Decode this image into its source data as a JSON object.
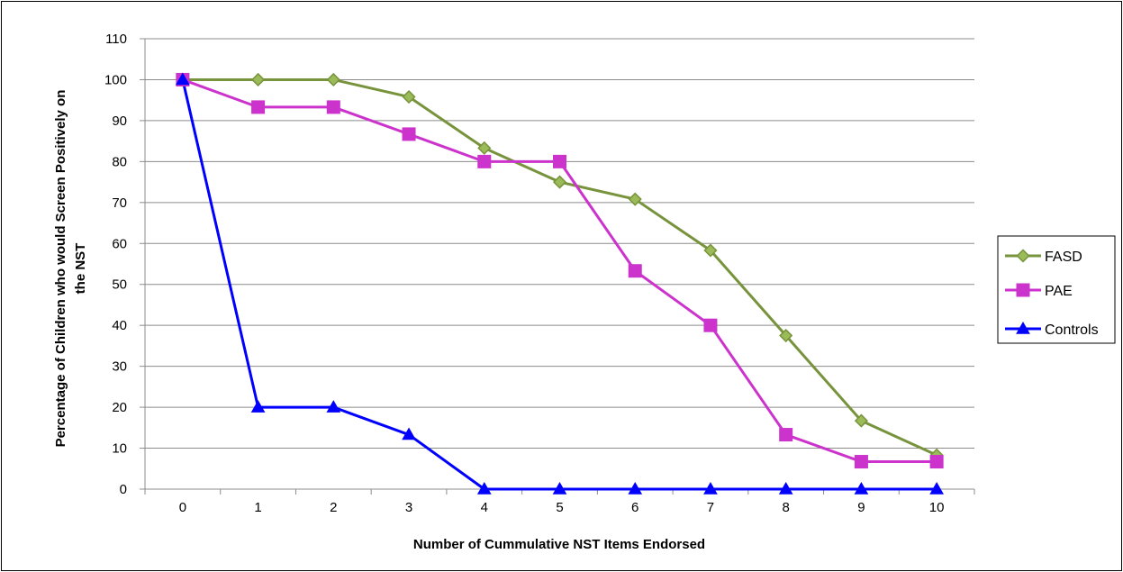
{
  "chart_data": {
    "type": "line",
    "x": [
      0,
      1,
      2,
      3,
      4,
      5,
      6,
      7,
      8,
      9,
      10
    ],
    "series": [
      {
        "name": "FASD",
        "values": [
          100,
          100,
          100,
          95.8,
          83.3,
          75,
          70.8,
          58.3,
          37.5,
          16.7,
          8.3
        ],
        "color": "#77933C",
        "marker": "diamond"
      },
      {
        "name": "PAE",
        "values": [
          100,
          93.3,
          93.3,
          86.7,
          80,
          80,
          53.3,
          40,
          13.3,
          6.7,
          6.7
        ],
        "color": "#CC33CC",
        "marker": "square"
      },
      {
        "name": "Controls",
        "values": [
          100,
          20,
          20,
          13.3,
          0,
          0,
          0,
          0,
          0,
          0,
          0
        ],
        "color": "#0000FF",
        "marker": "triangle"
      }
    ],
    "xlabel": "Number of Cummulative NST Items Endorsed",
    "ylabel_lines": [
      "Percentage of Children who would Screen Positively on",
      "the NST"
    ],
    "ylim": [
      0,
      110
    ],
    "yticks": [
      0,
      10,
      20,
      30,
      40,
      50,
      60,
      70,
      80,
      90,
      100,
      110
    ],
    "grid": true,
    "legend_position": "right"
  }
}
